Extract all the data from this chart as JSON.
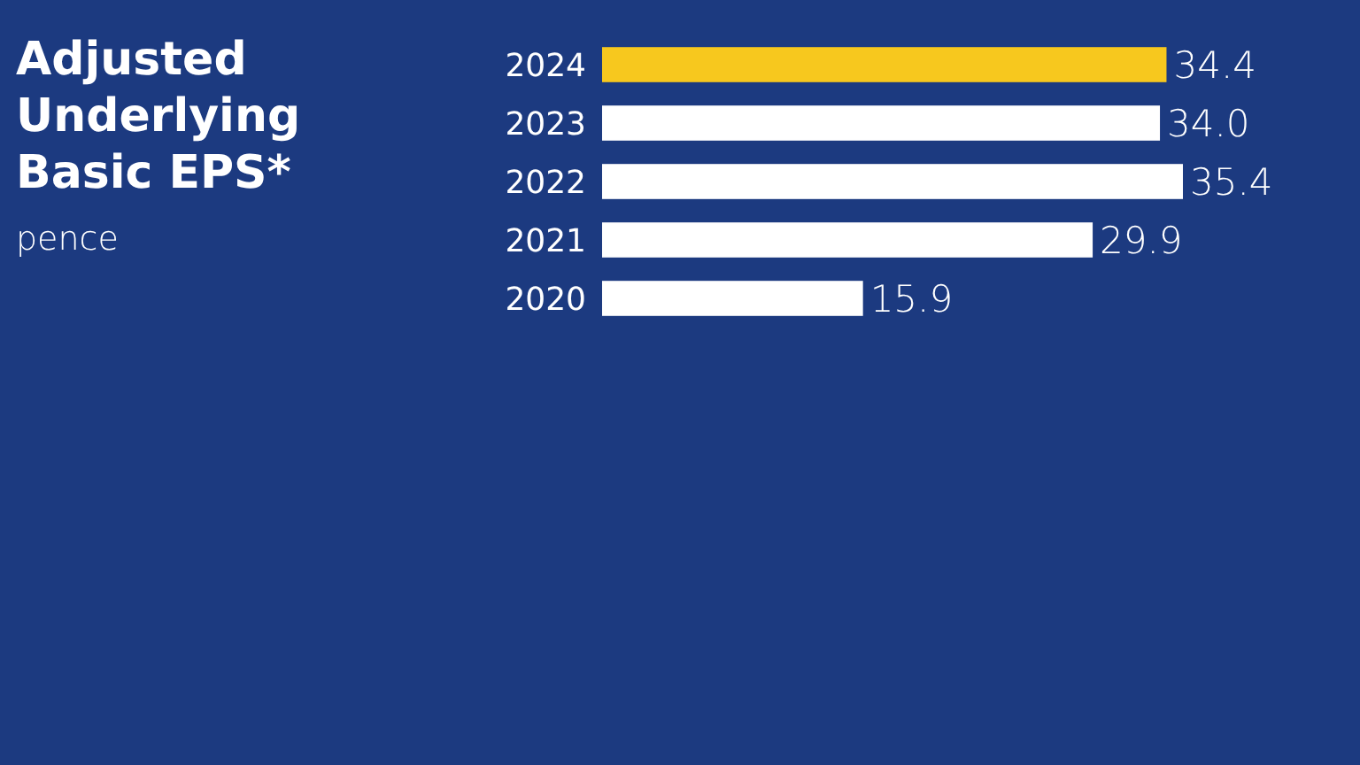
{
  "chart_data": {
    "type": "bar",
    "orientation": "horizontal",
    "title": "Adjusted Underlying Basic EPS*",
    "subtitle": "pence",
    "categories": [
      "2024",
      "2023",
      "2022",
      "2021",
      "2020"
    ],
    "values": [
      34.4,
      34.0,
      35.4,
      29.9,
      15.9
    ],
    "colors": [
      "#f7c81e",
      "#ffffff",
      "#ffffff",
      "#ffffff",
      "#ffffff"
    ],
    "value_labels": [
      "34.4",
      "34.0",
      "35.4",
      "29.9",
      "15.9"
    ]
  }
}
